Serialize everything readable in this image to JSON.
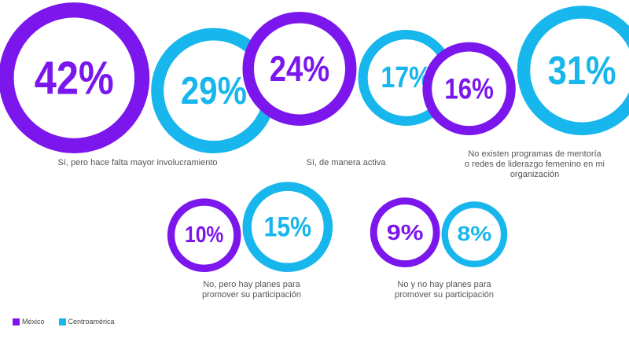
{
  "chart_data": {
    "type": "bubble",
    "legend_position": "bottom-left",
    "series": [
      {
        "name": "México",
        "color": "#7B17EC"
      },
      {
        "name": "Centroamérica",
        "color": "#17B6EC"
      }
    ],
    "groups": [
      {
        "label": "Sí, pero hace falta mayor involucramiento",
        "mexico": 42,
        "centroamerica": 29
      },
      {
        "label": "Sí, de manera activa",
        "mexico": 24,
        "centroamerica": 17
      },
      {
        "label": "No existen programas de mentoría\no redes de liderazgo femenino en mi\norganización",
        "mexico": 16,
        "centroamerica": 31
      },
      {
        "label": "No, pero hay planes para\npromover su participación",
        "mexico": 10,
        "centroamerica": 15
      },
      {
        "label": "No y no hay planes para\npromover su participación",
        "mexico": 9,
        "centroamerica": 8
      }
    ]
  },
  "value_suffix": "%"
}
